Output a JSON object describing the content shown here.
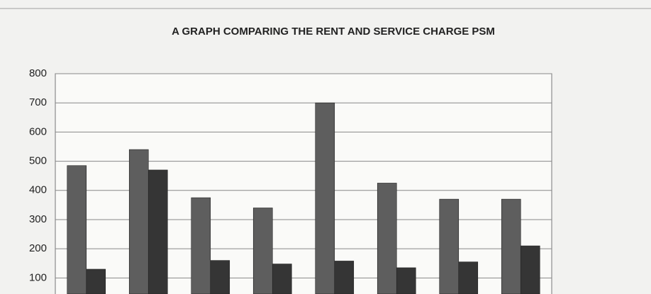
{
  "chart_data": {
    "type": "bar",
    "title": "A GRAPH COMPARING THE RENT AND SERVICE CHARGE PSM",
    "series": [
      {
        "color": "#5e5e5e",
        "values": [
          485,
          540,
          375,
          340,
          700,
          425,
          370,
          370
        ]
      },
      {
        "color": "#353535",
        "values": [
          130,
          470,
          160,
          148,
          158,
          135,
          155,
          210
        ]
      }
    ],
    "ylim": [
      45,
      800
    ],
    "yticks": [
      100,
      200,
      300,
      400,
      500,
      600,
      700,
      800
    ],
    "grid": true
  }
}
